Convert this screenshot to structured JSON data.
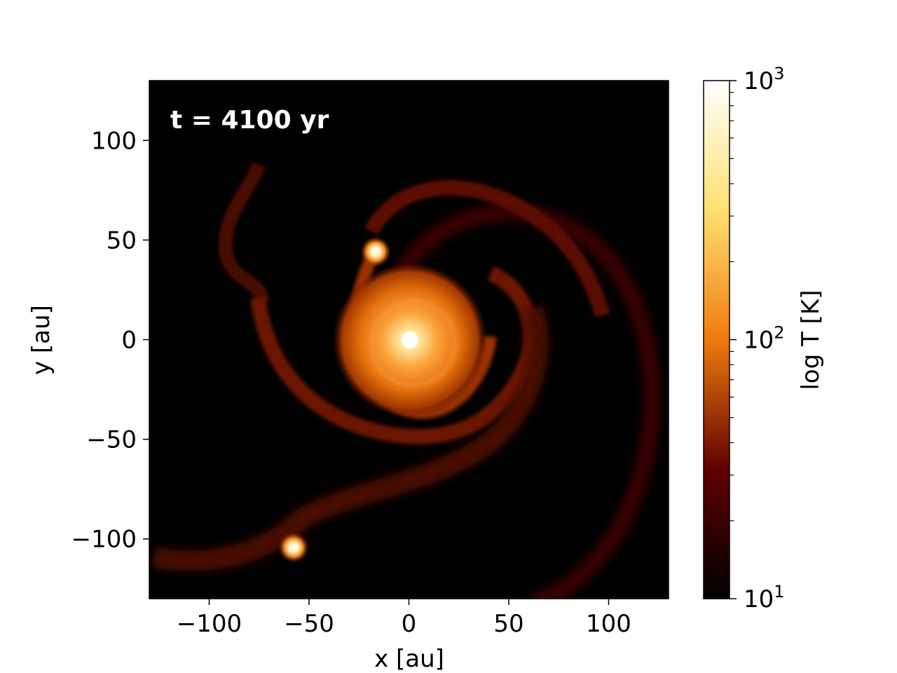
{
  "chart_data": {
    "type": "heatmap",
    "annotation": "t = 4100 yr",
    "xlabel": "x [au]",
    "ylabel": "y [au]",
    "xlim": [
      -130,
      130
    ],
    "ylim": [
      -130,
      130
    ],
    "xticks": [
      -100,
      -50,
      0,
      50,
      100
    ],
    "xtick_labels": [
      "−100",
      "−50",
      "0",
      "50",
      "100"
    ],
    "yticks": [
      -100,
      -50,
      0,
      50,
      100
    ],
    "ytick_labels": [
      "−100",
      "−50",
      "0",
      "50",
      "100"
    ],
    "colorbar": {
      "label": "log T [K]",
      "scale": "log",
      "range": [
        10,
        1000
      ],
      "major_ticks": [
        10,
        100,
        1000
      ],
      "major_tick_labels": [
        {
          "base": "10",
          "exp": "1"
        },
        {
          "base": "10",
          "exp": "2"
        },
        {
          "base": "10",
          "exp": "3"
        }
      ],
      "colormap": "afmhot",
      "colors": [
        "#000000",
        "#7a0000",
        "#f07b0c",
        "#ffff82",
        "#ffffff"
      ]
    },
    "features": [
      {
        "name": "central-star",
        "x": 0,
        "y": 0,
        "temperature_K": 1000
      },
      {
        "name": "companion-north",
        "x": -17,
        "y": 44,
        "temperature_K": 800
      },
      {
        "name": "companion-south",
        "x": -58,
        "y": -104,
        "temperature_K": 800
      }
    ]
  }
}
